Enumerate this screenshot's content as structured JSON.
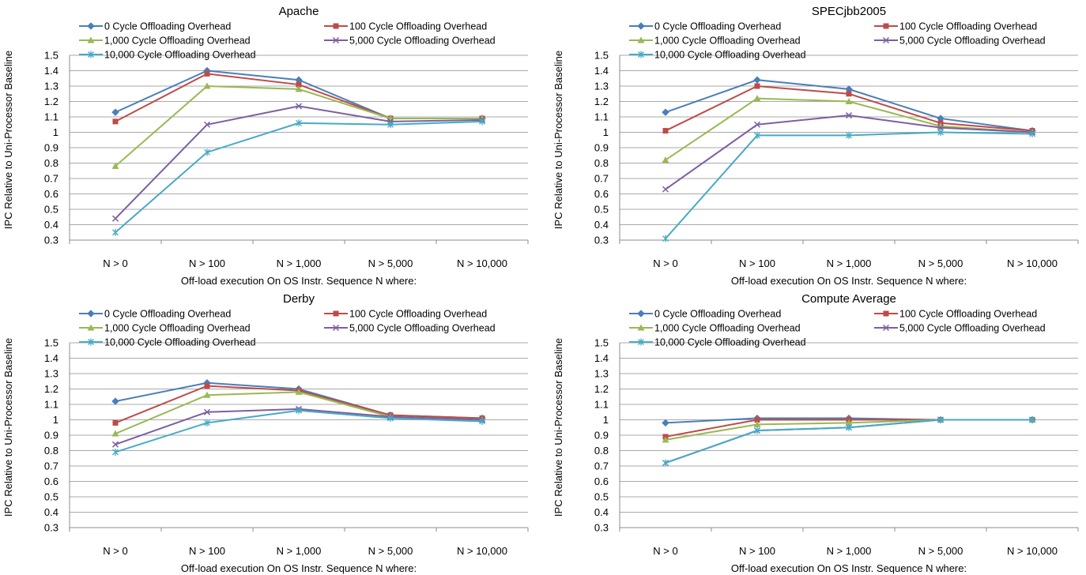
{
  "chart_data": [
    {
      "type": "line",
      "title": "Apache",
      "xlabel": "Off-load execution On OS Instr. Sequence N where:",
      "ylabel": "IPC Relative to Uni-Processor Baseline",
      "categories": [
        "N > 0",
        "N > 100",
        "N > 1,000",
        "N > 5,000",
        "N > 10,000"
      ],
      "ylim": [
        0.3,
        1.5
      ],
      "yticks": [
        "0.3",
        "0.4",
        "0.5",
        "0.6",
        "0.7",
        "0.8",
        "0.9",
        "1",
        "1.1",
        "1.2",
        "1.3",
        "1.4",
        "1.5"
      ],
      "grid": true,
      "legend": "top",
      "series": [
        {
          "name": "0 Cycle Offloading Overhead",
          "values": [
            1.13,
            1.4,
            1.34,
            1.09,
            1.09
          ]
        },
        {
          "name": "100 Cycle Offloading Overhead",
          "values": [
            1.07,
            1.38,
            1.31,
            1.09,
            1.09
          ]
        },
        {
          "name": "1,000 Cycle Offloading Overhead",
          "values": [
            0.78,
            1.3,
            1.28,
            1.09,
            1.09
          ]
        },
        {
          "name": "5,000 Cycle Offloading Overhead",
          "values": [
            0.44,
            1.05,
            1.17,
            1.07,
            1.08
          ]
        },
        {
          "name": "10,000 Cycle Offloading Overhead",
          "values": [
            0.35,
            0.87,
            1.06,
            1.05,
            1.07
          ]
        }
      ]
    },
    {
      "type": "line",
      "title": "SPECjbb2005",
      "xlabel": "Off-load execution On OS Instr. Sequence N where:",
      "ylabel": "IPC Relative to Uni-Processor Baseline",
      "categories": [
        "N > 0",
        "N > 100",
        "N > 1,000",
        "N > 5,000",
        "N > 10,000"
      ],
      "ylim": [
        0.3,
        1.5
      ],
      "yticks": [
        "0.3",
        "0.4",
        "0.5",
        "0.6",
        "0.7",
        "0.8",
        "0.9",
        "1",
        "1.1",
        "1.2",
        "1.3",
        "1.4",
        "1.5"
      ],
      "grid": true,
      "legend": "top",
      "series": [
        {
          "name": "0 Cycle Offloading Overhead",
          "values": [
            1.13,
            1.34,
            1.28,
            1.09,
            1.01
          ]
        },
        {
          "name": "100 Cycle Offloading Overhead",
          "values": [
            1.01,
            1.3,
            1.25,
            1.06,
            1.01
          ]
        },
        {
          "name": "1,000 Cycle Offloading Overhead",
          "values": [
            0.82,
            1.22,
            1.2,
            1.04,
            1.0
          ]
        },
        {
          "name": "5,000 Cycle Offloading Overhead",
          "values": [
            0.63,
            1.05,
            1.11,
            1.03,
            1.0
          ]
        },
        {
          "name": "10,000 Cycle Offloading Overhead",
          "values": [
            0.31,
            0.98,
            0.98,
            1.0,
            0.99
          ]
        }
      ]
    },
    {
      "type": "line",
      "title": "Derby",
      "xlabel": "Off-load execution On OS Instr. Sequence N where:",
      "ylabel": "IPC Relative to Uni-Processor Baseline",
      "categories": [
        "N > 0",
        "N > 100",
        "N > 1,000",
        "N > 5,000",
        "N > 10,000"
      ],
      "ylim": [
        0.3,
        1.5
      ],
      "yticks": [
        "0.3",
        "0.4",
        "0.5",
        "0.6",
        "0.7",
        "0.8",
        "0.9",
        "1",
        "1.1",
        "1.2",
        "1.3",
        "1.4",
        "1.5"
      ],
      "grid": true,
      "legend": "top",
      "series": [
        {
          "name": "0 Cycle Offloading Overhead",
          "values": [
            1.12,
            1.24,
            1.2,
            1.03,
            1.01
          ]
        },
        {
          "name": "100 Cycle Offloading Overhead",
          "values": [
            0.98,
            1.22,
            1.19,
            1.03,
            1.01
          ]
        },
        {
          "name": "1,000 Cycle Offloading Overhead",
          "values": [
            0.91,
            1.16,
            1.18,
            1.02,
            1.0
          ]
        },
        {
          "name": "5,000 Cycle Offloading Overhead",
          "values": [
            0.84,
            1.05,
            1.07,
            1.02,
            1.0
          ]
        },
        {
          "name": "10,000 Cycle Offloading Overhead",
          "values": [
            0.79,
            0.98,
            1.06,
            1.01,
            0.99
          ]
        }
      ]
    },
    {
      "type": "line",
      "title": "Compute Average",
      "xlabel": "Off-load execution On OS Instr. Sequence N where:",
      "ylabel": "IPC Relative to Uni-Processor Baseline",
      "categories": [
        "N > 0",
        "N > 100",
        "N > 1,000",
        "N > 5,000",
        "N > 10,000"
      ],
      "ylim": [
        0.3,
        1.5
      ],
      "yticks": [
        "0.3",
        "0.4",
        "0.5",
        "0.6",
        "0.7",
        "0.8",
        "0.9",
        "1",
        "1.1",
        "1.2",
        "1.3",
        "1.4",
        "1.5"
      ],
      "grid": true,
      "legend": "top",
      "series": [
        {
          "name": "0 Cycle Offloading Overhead",
          "values": [
            0.98,
            1.01,
            1.01,
            1.0,
            1.0
          ]
        },
        {
          "name": "100 Cycle Offloading Overhead",
          "values": [
            0.89,
            1.0,
            1.0,
            1.0,
            1.0
          ]
        },
        {
          "name": "1,000 Cycle Offloading Overhead",
          "values": [
            0.87,
            0.97,
            0.98,
            1.0,
            1.0
          ]
        },
        {
          "name": "5,000 Cycle Offloading Overhead",
          "values": [
            0.72,
            0.93,
            0.95,
            1.0,
            1.0
          ]
        },
        {
          "name": "10,000 Cycle Offloading Overhead",
          "values": [
            0.72,
            0.93,
            0.95,
            1.0,
            1.0
          ]
        }
      ]
    }
  ],
  "series_style": [
    {
      "color": "#4a7ebb",
      "marker": "diamond-marker"
    },
    {
      "color": "#be4b48",
      "marker": "square-marker"
    },
    {
      "color": "#98b954",
      "marker": "triangle-marker"
    },
    {
      "color": "#7d5fa0",
      "marker": "x-marker"
    },
    {
      "color": "#46aac5",
      "marker": "asterisk-marker"
    }
  ]
}
